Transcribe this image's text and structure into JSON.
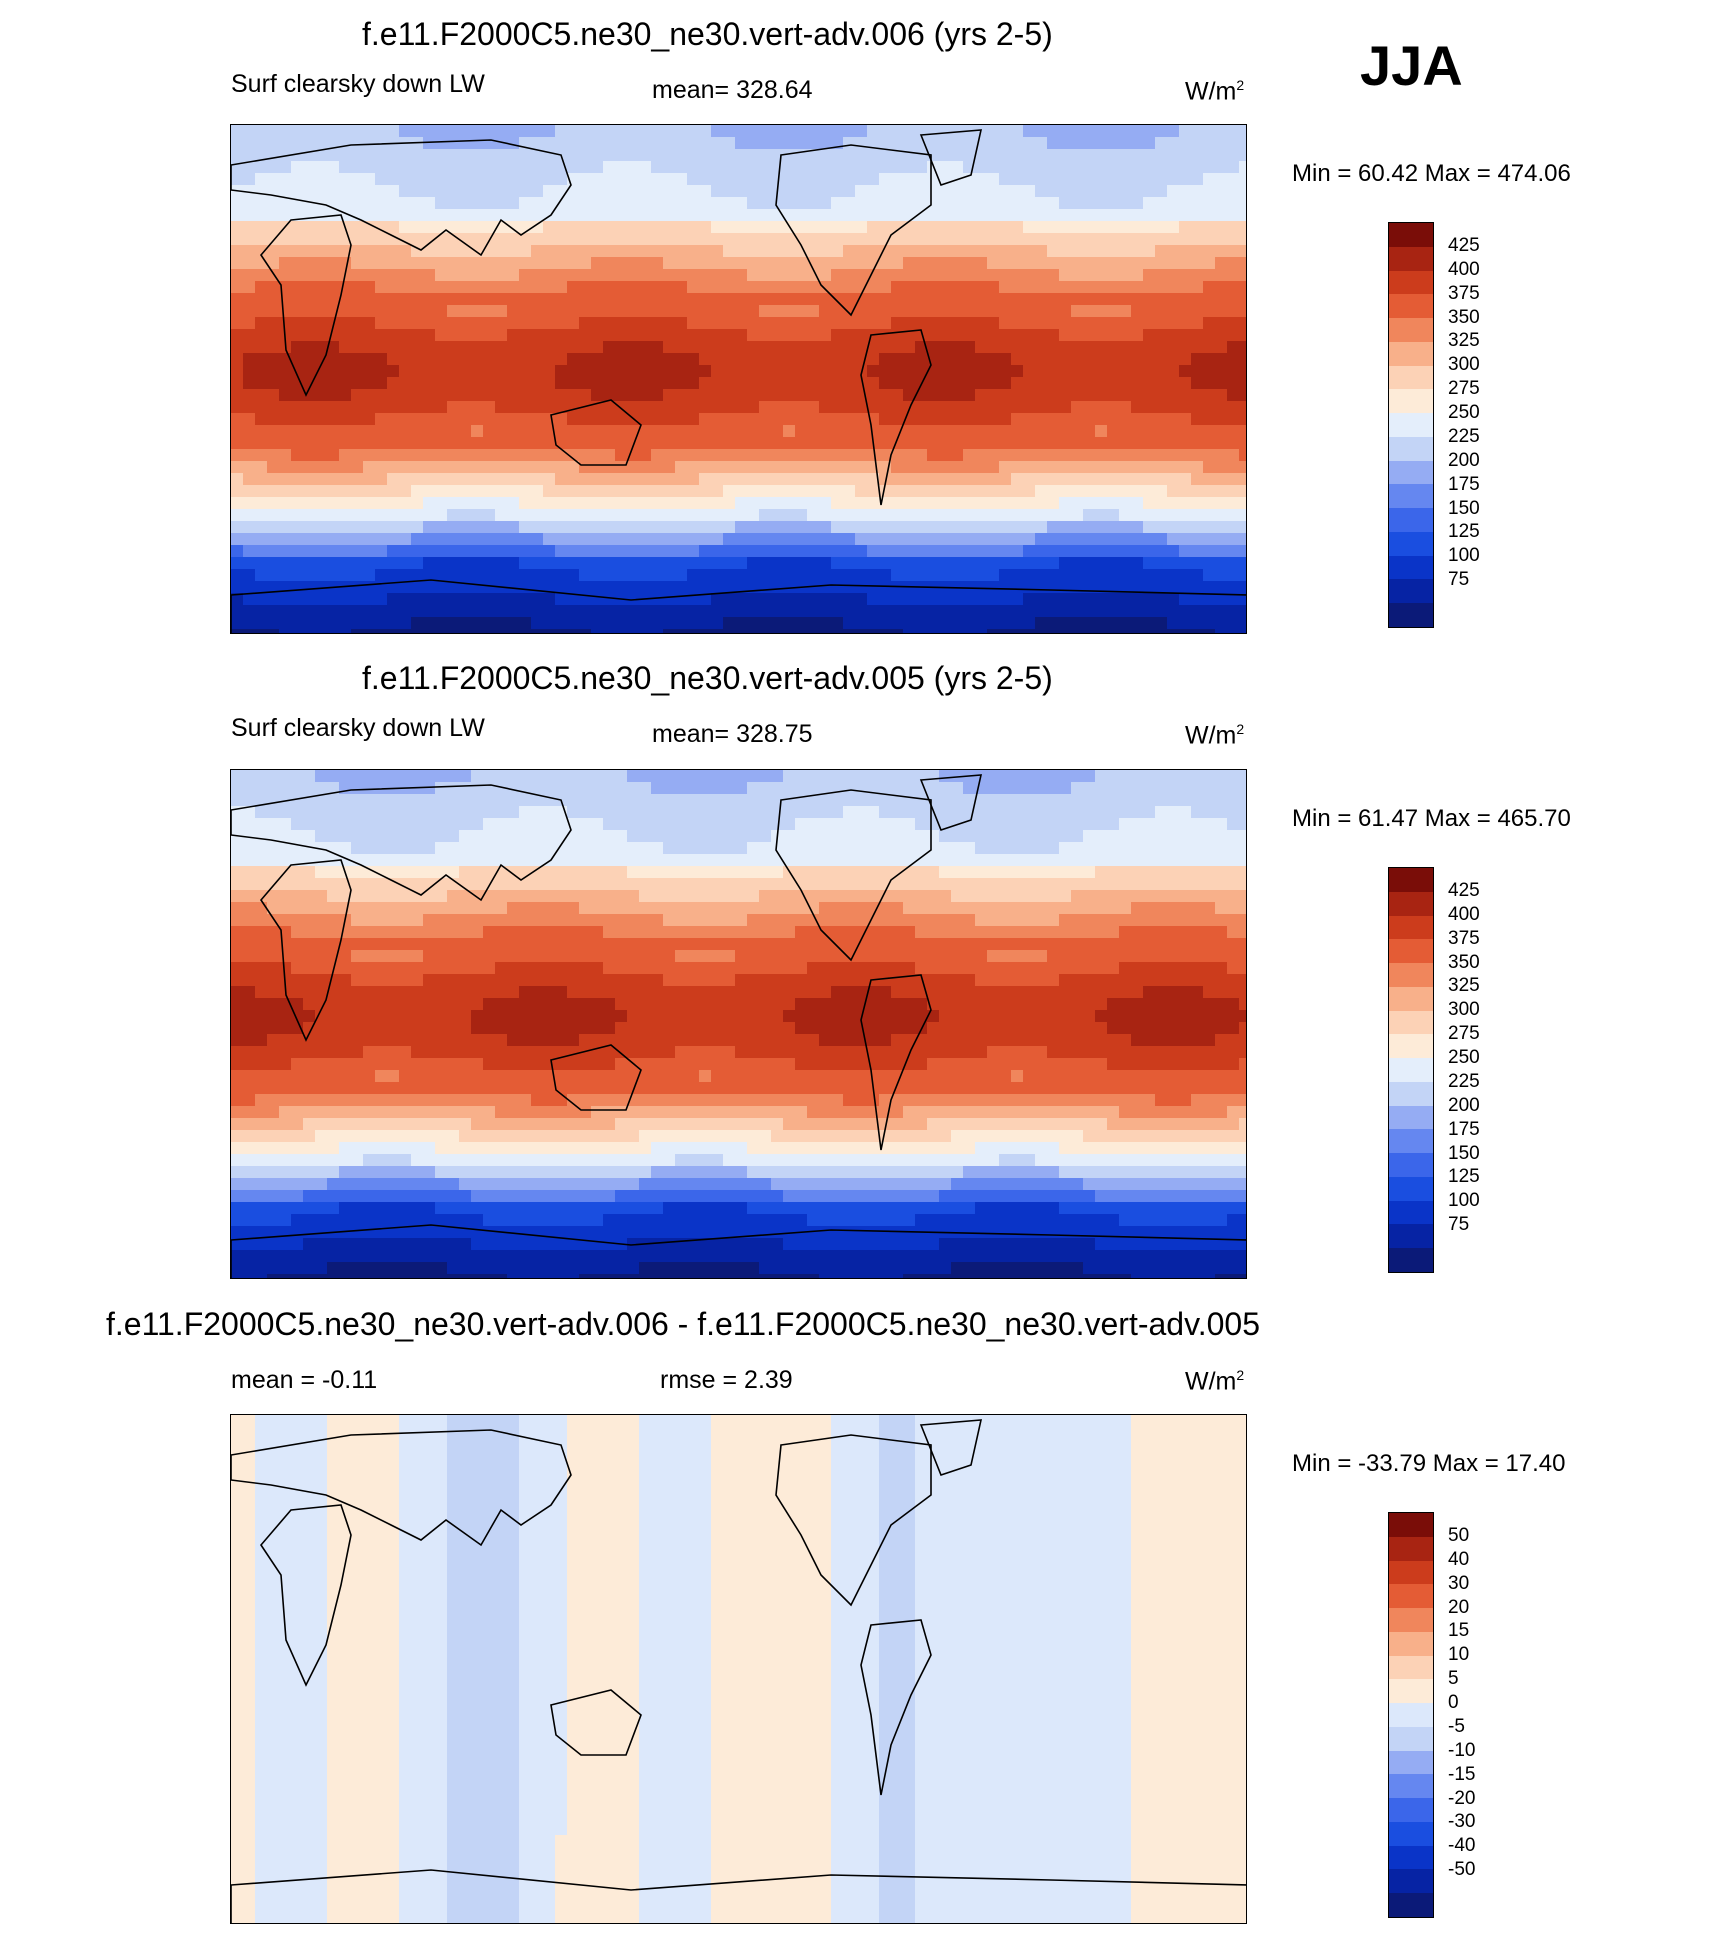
{
  "season": "JJA",
  "palettes": {
    "abs": [
      "#0b1a78",
      "#0623a4",
      "#0a34c8",
      "#1a4ee0",
      "#3b66ea",
      "#6587f0",
      "#95acf3",
      "#c3d4f6",
      "#e4eefb",
      "#fdebd8",
      "#fcd2b6",
      "#f8b08a",
      "#f0865c",
      "#e45c35",
      "#cc3c1c",
      "#a82412",
      "#7a0d08"
    ],
    "diff": [
      "#0b1a78",
      "#0623a4",
      "#0a34c8",
      "#1a4ee0",
      "#3b66ea",
      "#6587f0",
      "#95acf3",
      "#c3d4f6",
      "#dce8fb",
      "#fdebd8",
      "#fcd2b6",
      "#f8b08a",
      "#f0865c",
      "#e45c35",
      "#cc3c1c",
      "#a82412",
      "#7a0d08"
    ]
  },
  "panels": [
    {
      "title": "f.e11.F2000C5.ne30_ne30.vert-adv.006 (yrs 2-5)",
      "left_label": "Surf clearsky down LW",
      "center_label": "mean= 328.64",
      "units": "W/m",
      "units_sup": "2",
      "minmax": "Min =  60.42 Max = 474.06",
      "colorbar": {
        "levels": [
          "425",
          "400",
          "375",
          "350",
          "325",
          "300",
          "275",
          "250",
          "225",
          "200",
          "175",
          "150",
          "125",
          "100",
          "75"
        ]
      }
    },
    {
      "title": "f.e11.F2000C5.ne30_ne30.vert-adv.005 (yrs 2-5)",
      "left_label": "Surf clearsky down LW",
      "center_label": "mean= 328.75",
      "units": "W/m",
      "units_sup": "2",
      "minmax": "Min =  61.47 Max = 465.70",
      "colorbar": {
        "levels": [
          "425",
          "400",
          "375",
          "350",
          "325",
          "300",
          "275",
          "250",
          "225",
          "200",
          "175",
          "150",
          "125",
          "100",
          "75"
        ]
      }
    },
    {
      "title": "f.e11.F2000C5.ne30_ne30.vert-adv.006 - f.e11.F2000C5.ne30_ne30.vert-adv.005",
      "left_label": "mean =  -0.11",
      "center_label": "rmse =   2.39",
      "units": "W/m",
      "units_sup": "2",
      "minmax": "Min = -33.79 Max =  17.40",
      "colorbar": {
        "levels": [
          "50",
          "40",
          "30",
          "20",
          "15",
          "10",
          "5",
          "0",
          "-5",
          "-10",
          "-15",
          "-20",
          "-30",
          "-40",
          "-50"
        ]
      }
    }
  ],
  "chart_data": [
    {
      "type": "heatmap",
      "title": "f.e11.F2000C5.ne30_ne30.vert-adv.006 (yrs 2-5)",
      "variable": "Surf clearsky down LW",
      "units": "W/m2",
      "mean": 328.64,
      "min": 60.42,
      "max": 474.06,
      "contour_levels": [
        75,
        100,
        125,
        150,
        175,
        200,
        225,
        250,
        275,
        300,
        325,
        350,
        375,
        400,
        425
      ]
    },
    {
      "type": "heatmap",
      "title": "f.e11.F2000C5.ne30_ne30.vert-adv.005 (yrs 2-5)",
      "variable": "Surf clearsky down LW",
      "units": "W/m2",
      "mean": 328.75,
      "min": 61.47,
      "max": 465.7,
      "contour_levels": [
        75,
        100,
        125,
        150,
        175,
        200,
        225,
        250,
        275,
        300,
        325,
        350,
        375,
        400,
        425
      ]
    },
    {
      "type": "heatmap",
      "title": "f.e11.F2000C5.ne30_ne30.vert-adv.006 - f.e11.F2000C5.ne30_ne30.vert-adv.005",
      "units": "W/m2",
      "mean": -0.11,
      "rmse": 2.39,
      "min": -33.79,
      "max": 17.4,
      "contour_levels": [
        -50,
        -40,
        -30,
        -20,
        -15,
        -10,
        -5,
        0,
        5,
        10,
        15,
        20,
        30,
        40,
        50
      ]
    }
  ]
}
